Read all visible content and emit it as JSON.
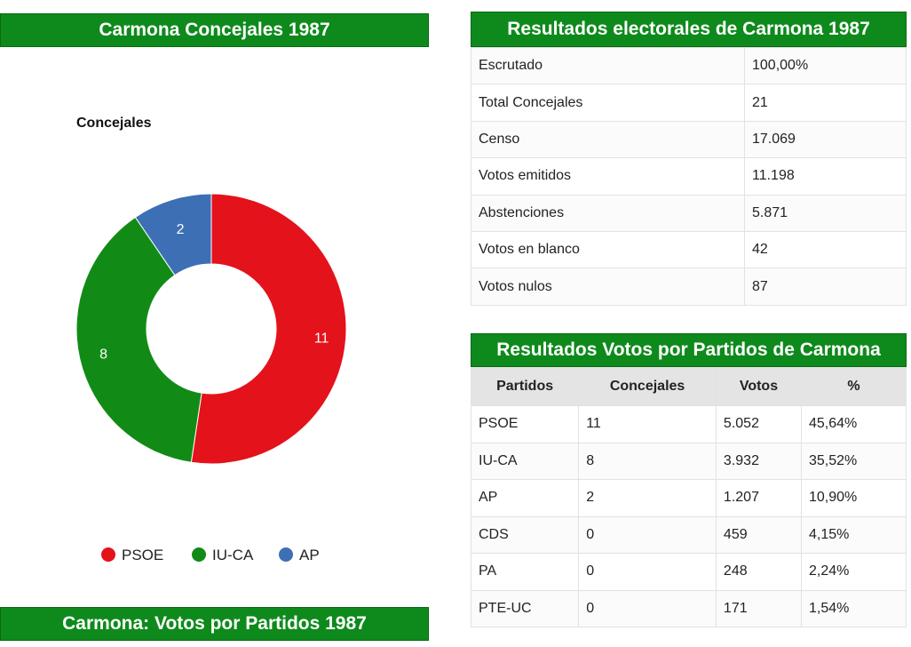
{
  "left_panel": {
    "title": "Carmona Concejales 1987",
    "bottom_title": "Carmona: Votos por Partidos 1987"
  },
  "summary": {
    "title": "Resultados electorales de Carmona 1987",
    "rows": [
      {
        "label": "Escrutado",
        "value": "100,00%"
      },
      {
        "label": "Total Concejales",
        "value": "21"
      },
      {
        "label": "Censo",
        "value": "17.069"
      },
      {
        "label": "Votos emitidos",
        "value": "11.198"
      },
      {
        "label": "Abstenciones",
        "value": "5.871"
      },
      {
        "label": "Votos en blanco",
        "value": "42"
      },
      {
        "label": "Votos nulos",
        "value": "87"
      }
    ]
  },
  "parties": {
    "title": "Resultados Votos por Partidos de Carmona",
    "headers": [
      "Partidos",
      "Concejales",
      "Votos",
      "%"
    ],
    "rows": [
      [
        "PSOE",
        "11",
        "5.052",
        "45,64%"
      ],
      [
        "IU-CA",
        "8",
        "3.932",
        "35,52%"
      ],
      [
        "AP",
        "2",
        "1.207",
        "10,90%"
      ],
      [
        "CDS",
        "0",
        "459",
        "4,15%"
      ],
      [
        "PA",
        "0",
        "248",
        "2,24%"
      ],
      [
        "PTE-UC",
        "0",
        "171",
        "1,54%"
      ]
    ]
  },
  "chart_data": {
    "type": "pie",
    "variant": "donut",
    "title": "Concejales",
    "categories": [
      "PSOE",
      "IU-CA",
      "AP"
    ],
    "values": [
      11,
      8,
      2
    ],
    "colors": [
      "#e3121b",
      "#128b16",
      "#3d6fb4"
    ],
    "legend_position": "bottom"
  }
}
